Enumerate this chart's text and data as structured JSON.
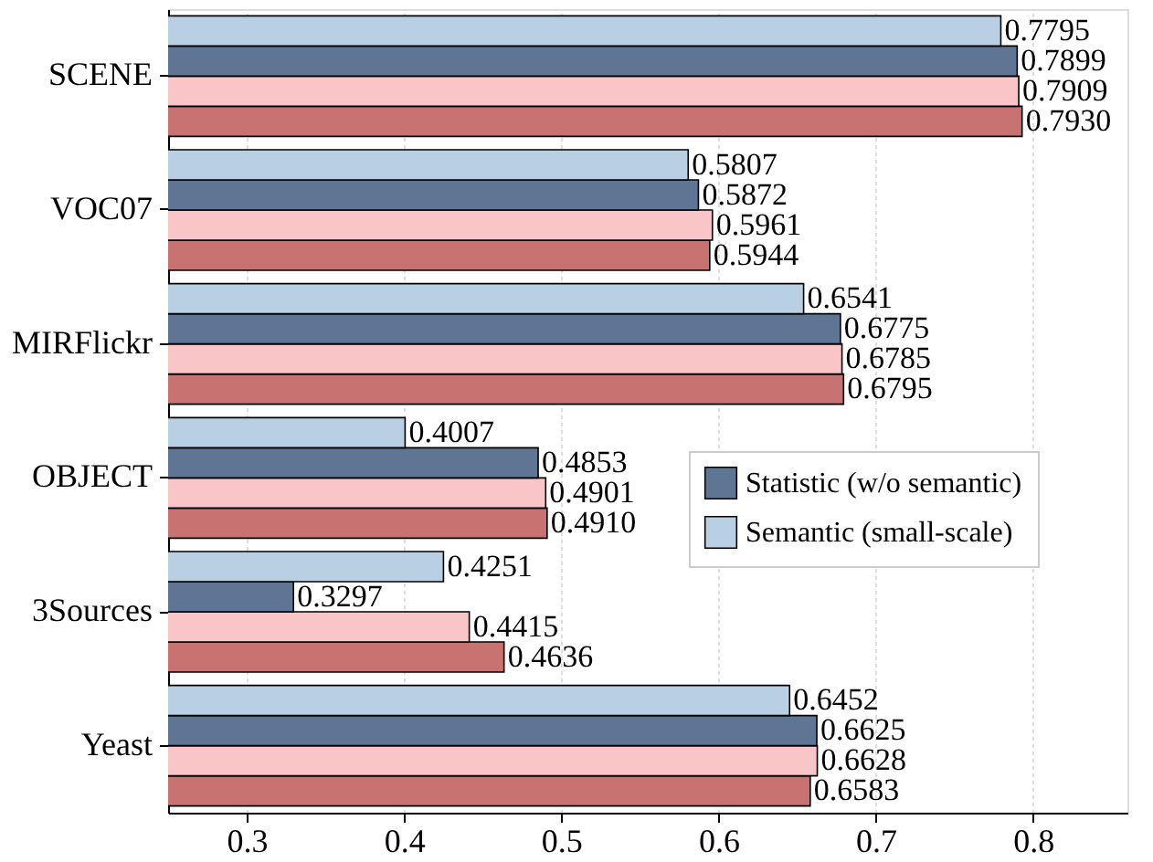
{
  "chart_data": {
    "type": "bar",
    "orientation": "horizontal",
    "categories": [
      "SCENE",
      "VOC07",
      "MIRFlickr",
      "OBJECT",
      "3Sources",
      "Yeast"
    ],
    "series": [
      {
        "color": "#c87372",
        "values": [
          0.793,
          0.5944,
          0.6795,
          0.491,
          0.4636,
          0.6583
        ],
        "value_labels": [
          "0.7930",
          "0.5944",
          "0.6795",
          "0.4910",
          "0.4636",
          "0.6583"
        ]
      },
      {
        "color": "#f9c5c6",
        "values": [
          0.7909,
          0.5961,
          0.6785,
          0.4901,
          0.4415,
          0.6628
        ],
        "value_labels": [
          "0.7909",
          "0.5961",
          "0.6785",
          "0.4901",
          "0.4415",
          "0.6628"
        ]
      },
      {
        "name": "Statistic (w/o semantic)",
        "color": "#5f7594",
        "values": [
          0.7899,
          0.5872,
          0.6775,
          0.4853,
          0.3297,
          0.6625
        ],
        "value_labels": [
          "0.7899",
          "0.5872",
          "0.6775",
          "0.4853",
          "0.3297",
          "0.6625"
        ]
      },
      {
        "name": "Semantic (small-scale)",
        "color": "#b9cfe3",
        "values": [
          0.7795,
          0.5807,
          0.6541,
          0.4007,
          0.4251,
          0.6452
        ],
        "value_labels": [
          "0.7795",
          "0.5807",
          "0.6541",
          "0.4007",
          "0.4251",
          "0.6452"
        ]
      }
    ],
    "xlim": [
      0.25,
      0.86
    ],
    "xticks": [
      0.3,
      0.4,
      0.5,
      0.6,
      0.7,
      0.8
    ],
    "grid": "x",
    "legend": "right"
  }
}
